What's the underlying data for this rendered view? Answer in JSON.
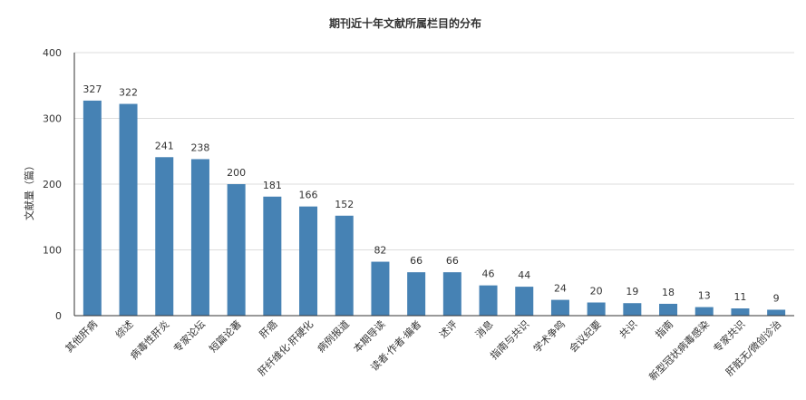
{
  "chart_data": {
    "type": "bar",
    "title": "期刊近十年文献所属栏目的分布",
    "xlabel": "",
    "ylabel": "文献量（篇）",
    "ylim": [
      0,
      400
    ],
    "yticks": [
      0,
      100,
      200,
      300,
      400
    ],
    "grid": true,
    "legend": "none",
    "bar_color": "#4682b4",
    "categories": [
      "其他肝病",
      "综述",
      "病毒性肝炎",
      "专家论坛",
      "短篇论著",
      "肝癌",
      "肝纤维化·肝硬化",
      "病例报道",
      "本期导读",
      "读者·作者·编者",
      "述评",
      "消息",
      "指南与共识",
      "学术争鸣",
      "会议纪要",
      "共识",
      "指南",
      "新型冠状病毒感染",
      "专家共识",
      "肝脏无/微创诊治"
    ],
    "values": [
      327,
      322,
      241,
      238,
      200,
      181,
      166,
      152,
      82,
      66,
      66,
      46,
      44,
      24,
      20,
      19,
      18,
      13,
      11,
      9
    ]
  }
}
